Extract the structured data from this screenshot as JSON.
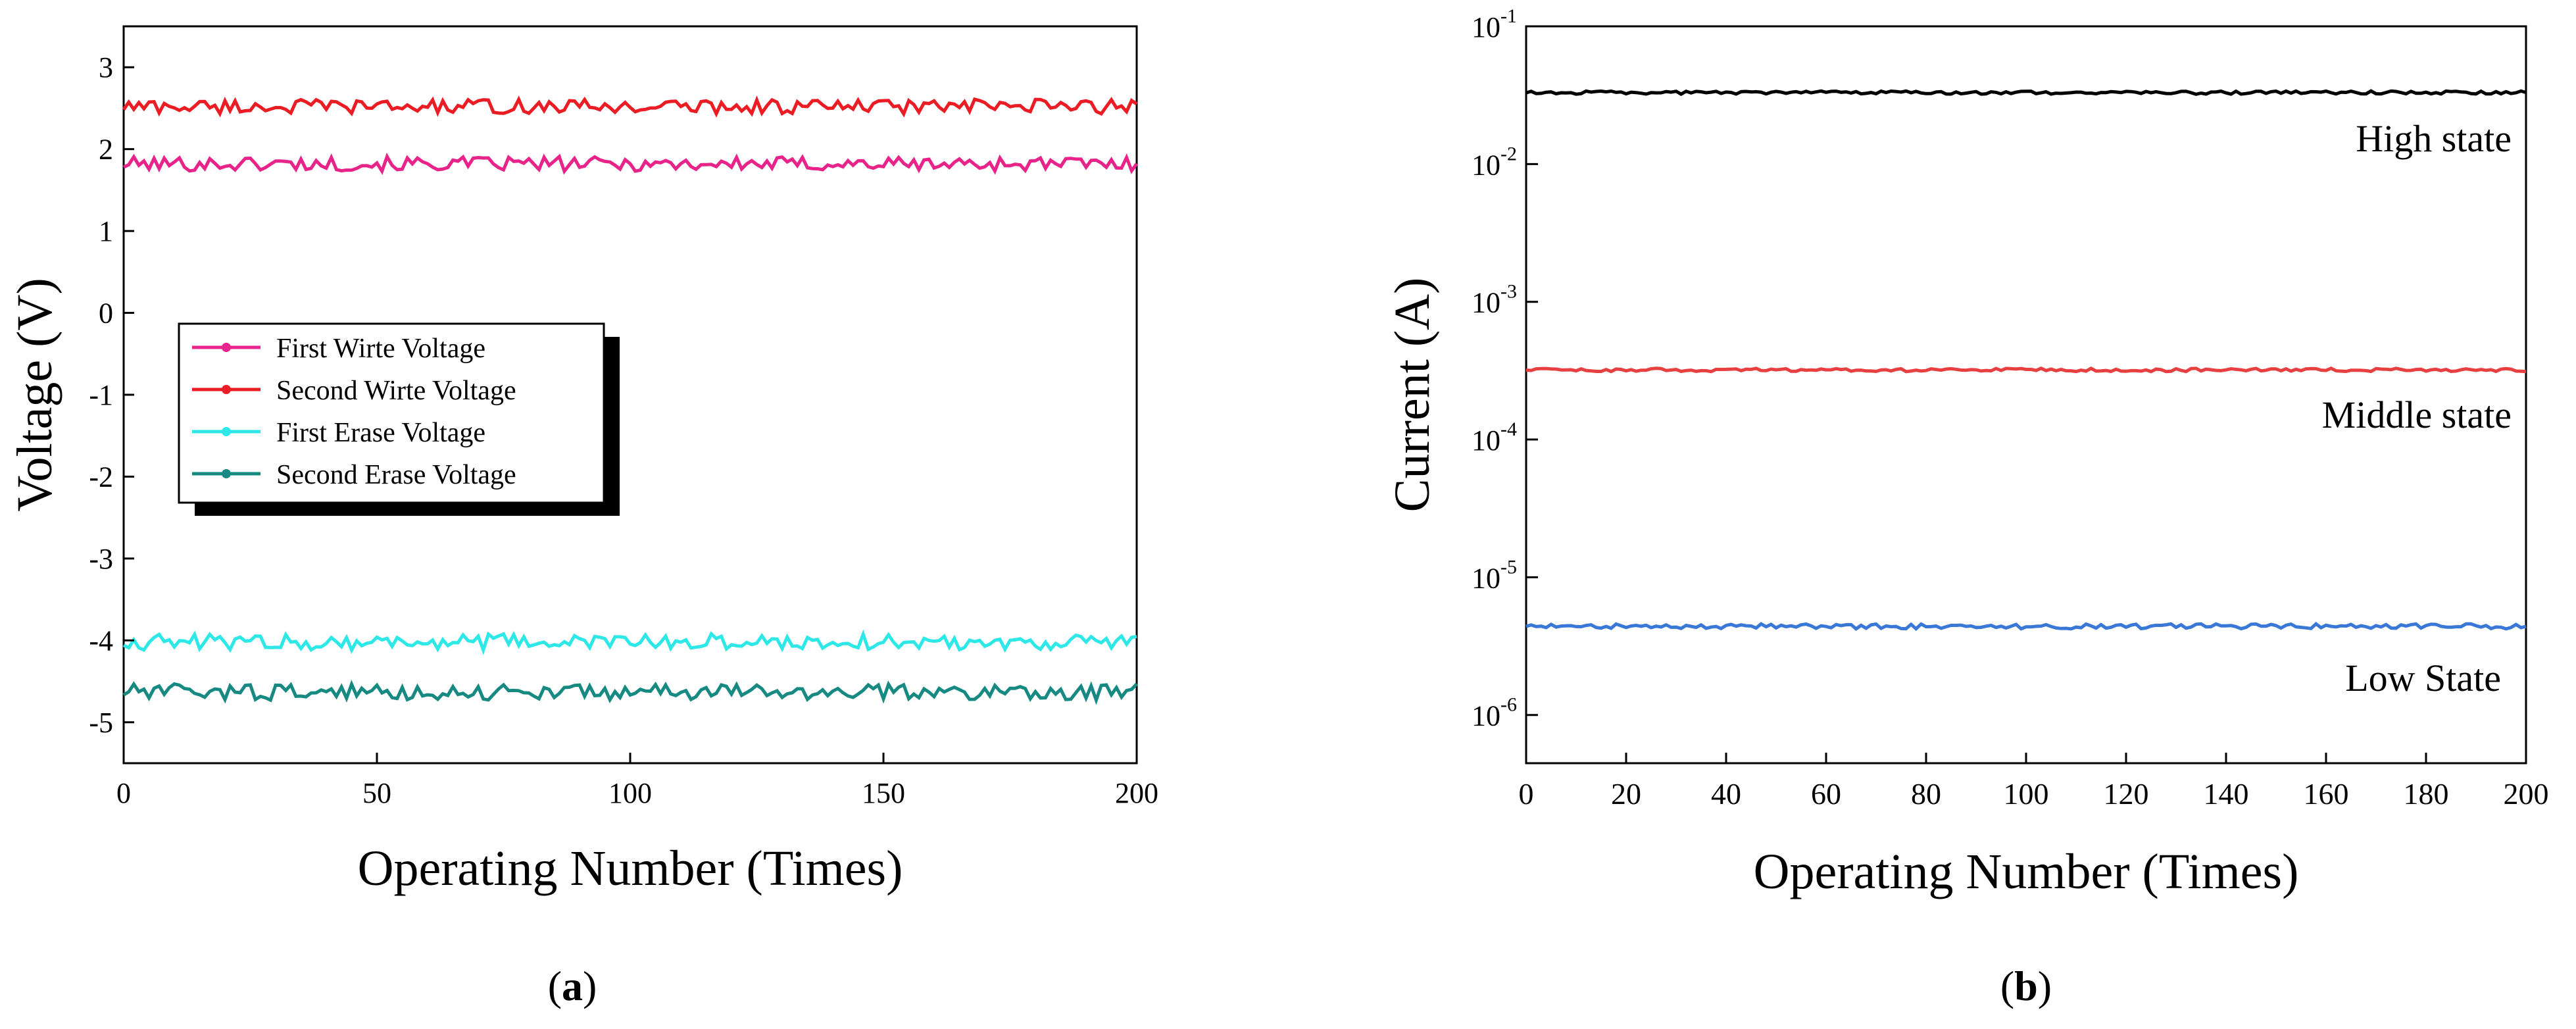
{
  "chart_data": [
    {
      "panel": "a",
      "type": "line",
      "xlabel": "Operating Number (Times)",
      "ylabel": "Voltage (V)",
      "xlim": [
        0,
        200
      ],
      "ylim": [
        -5.5,
        3.5
      ],
      "xticks": [
        "0",
        "50",
        "100",
        "150",
        "200"
      ],
      "yticks": [
        "-5",
        "-4",
        "-3",
        "-2",
        "-1",
        "0",
        "1",
        "2",
        "3"
      ],
      "legend_position": "center-left",
      "series": [
        {
          "name": "First Wirte Voltage",
          "color": "#e8248a",
          "marker": "square",
          "mean": 1.82,
          "amplitude": 0.09
        },
        {
          "name": "Second Wirte Voltage",
          "color": "#ec1c24",
          "marker": "circle",
          "mean": 2.52,
          "amplitude": 0.09
        },
        {
          "name": "First Erase Voltage",
          "color": "#2ee8e8",
          "marker": "triangle-up",
          "mean": -4.02,
          "amplitude": 0.1
        },
        {
          "name": "Second Erase Voltage",
          "color": "#168a82",
          "marker": "triangle-down",
          "mean": -4.63,
          "amplitude": 0.1
        }
      ]
    },
    {
      "panel": "b",
      "type": "line",
      "yscale": "log",
      "xlabel": "Operating Number (Times)",
      "ylabel": "Current (A)",
      "xlim": [
        0,
        200
      ],
      "ylim_exp": [
        -6.35,
        -1
      ],
      "xticks": [
        "0",
        "20",
        "40",
        "60",
        "80",
        "100",
        "120",
        "140",
        "160",
        "180",
        "200"
      ],
      "ytick_base": "10",
      "ytick_exponents": [
        "-6",
        "-5",
        "-4",
        "-3",
        "-2",
        "-1"
      ],
      "series": [
        {
          "name": "High state",
          "color": "#000000",
          "mean": 0.033,
          "amplitude_log": 0.012
        },
        {
          "name": "Middle state",
          "color": "#e84040",
          "mean": 0.00032,
          "amplitude_log": 0.012
        },
        {
          "name": "Low State",
          "color": "#3a78d8",
          "mean": 4.4e-06,
          "amplitude_log": 0.018
        }
      ]
    }
  ],
  "panel_labels": [
    {
      "open": "(",
      "letter": "a",
      "close": ")"
    },
    {
      "open": "(",
      "letter": "b",
      "close": ")"
    }
  ]
}
